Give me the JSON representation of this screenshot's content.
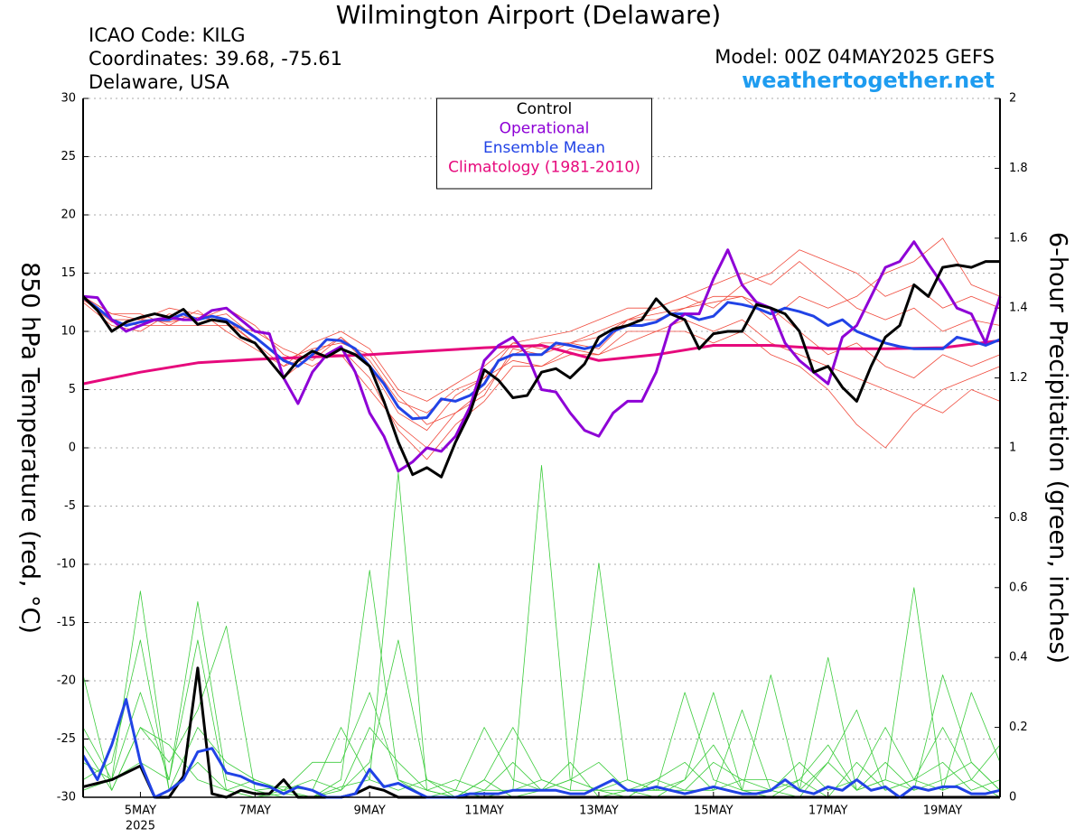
{
  "chart_data": {
    "type": "line",
    "title": "Wilmington Airport (Delaware)",
    "info_lines": [
      "ICAO Code: KILG",
      "Coordinates: 39.68, -75.61",
      "Delaware, USA"
    ],
    "model": "Model: 00Z 04MAY2025 GEFS",
    "source": "weathertogether.net",
    "y_label": "850 hPa Temperature (red, °C)",
    "y2_label": "6-hour Precipitation (green, inches)",
    "xticks": [
      "5MAY",
      "7MAY",
      "9MAY",
      "11MAY",
      "13MAY",
      "15MAY",
      "17MAY",
      "19MAY"
    ],
    "xtick_year": "2025",
    "ylim": [
      -30,
      30
    ],
    "yticks": [
      -30,
      -25,
      -20,
      -15,
      -10,
      -5,
      0,
      5,
      10,
      15,
      20,
      25,
      30
    ],
    "y2lim": [
      0,
      2
    ],
    "y2ticks": [
      0,
      0.2,
      0.4,
      0.6,
      0.8,
      1,
      1.2,
      1.4,
      1.6,
      1.8,
      2
    ],
    "grid": true,
    "legend": "top center",
    "series": [
      {
        "name": "Control",
        "color": "#000000",
        "values": [
          13,
          11.8,
          10,
          10.8,
          11.2,
          11.5,
          11.2,
          11.9,
          10.6,
          11,
          10.8,
          9.5,
          9,
          7.5,
          6,
          7.5,
          8.3,
          7.8,
          8.5,
          8,
          7,
          4,
          0.5,
          -2.3,
          -1.7,
          -2.5,
          0.5,
          3,
          6.7,
          5.8,
          4.3,
          4.5,
          6.5,
          6.8,
          6,
          7.2,
          9.5,
          10.2,
          10.5,
          11,
          12.8,
          11.5,
          11,
          8.5,
          9.8,
          10,
          10,
          12.3,
          12,
          11.5,
          10,
          6.5,
          7,
          5.2,
          4,
          7,
          9.5,
          10.5,
          14,
          13,
          15.5,
          15.7,
          15.5,
          16,
          16
        ]
      },
      {
        "name": "Operational",
        "color": "#8e00d6",
        "values": [
          13,
          12.9,
          11,
          10,
          10.5,
          11,
          11.2,
          11,
          11,
          11.8,
          12,
          11,
          10,
          9.8,
          6,
          3.8,
          6.5,
          8,
          8.7,
          6.5,
          3,
          1,
          -2,
          -1.2,
          0,
          -0.3,
          1,
          3.5,
          7.5,
          8.8,
          9.5,
          8,
          5,
          4.8,
          3,
          1.5,
          1,
          3,
          4,
          4,
          6.5,
          10.5,
          11.5,
          11.5,
          14.5,
          17,
          14,
          12.5,
          12,
          9,
          7.5,
          6.5,
          5.5,
          9.5,
          10.5,
          13,
          15.5,
          16,
          17.7,
          15.8,
          14,
          12,
          11.5,
          9,
          13
        ]
      },
      {
        "name": "Ensemble Mean",
        "color": "#2143e6",
        "values": [
          12.9,
          12,
          11,
          10.5,
          10.8,
          11,
          11,
          11.5,
          11,
          11.3,
          11,
          10.3,
          9.5,
          8.5,
          7.5,
          7,
          8,
          9.3,
          9.2,
          8.5,
          7,
          5.5,
          3.5,
          2.5,
          2.6,
          4.2,
          4,
          4.5,
          5.5,
          7.5,
          8,
          8,
          8,
          9,
          8.8,
          8.5,
          8.8,
          10,
          10.5,
          10.5,
          10.8,
          11.5,
          11.5,
          11,
          11.3,
          12.5,
          12.3,
          12,
          11.5,
          12,
          11.7,
          11.3,
          10.5,
          11,
          10,
          9.5,
          9,
          8.7,
          8.5,
          8.5,
          8.5,
          9.5,
          9.2,
          8.8,
          9.3
        ]
      },
      {
        "name": "Climatology (1981-2010)",
        "color": "#e6097c",
        "values": [
          5.5,
          6.5,
          7.3,
          7.6,
          7.8,
          8,
          8.3,
          8.6,
          8.8,
          7.5,
          8,
          8.8,
          8.8,
          8.5,
          8.5,
          8.6,
          9.2
        ]
      },
      {
        "color": "#2143e6",
        "axis": "y2",
        "values": [
          0.12,
          0.05,
          0.15,
          0.28,
          0.1,
          0,
          0.02,
          0.05,
          0.13,
          0.14,
          0.07,
          0.06,
          0.04,
          0.03,
          0.01,
          0.03,
          0.02,
          0,
          0,
          0.01,
          0.08,
          0.03,
          0.04,
          0.02,
          0,
          0,
          0,
          0.01,
          0.01,
          0.01,
          0.02,
          0.02,
          0.02,
          0.02,
          0.01,
          0.01,
          0.03,
          0.05,
          0.02,
          0.02,
          0.03,
          0.02,
          0.01,
          0.02,
          0.03,
          0.02,
          0.01,
          0.01,
          0.02,
          0.05,
          0.02,
          0.01,
          0.03,
          0.02,
          0.05,
          0.02,
          0.03,
          0,
          0.03,
          0.02,
          0.03,
          0.03,
          0.01,
          0.01,
          0.02
        ]
      },
      {
        "color": "#000000",
        "axis": "y2",
        "values": [
          0.03,
          0.04,
          0.05,
          0.07,
          0.09,
          0,
          0,
          0.06,
          0.37,
          0.01,
          0,
          0.02,
          0.01,
          0.01,
          0.05,
          0,
          0,
          0,
          0,
          0.01,
          0.03,
          0.02,
          0,
          0,
          0,
          0,
          0,
          0,
          0,
          0,
          0,
          0,
          0,
          0,
          0,
          0,
          0,
          0,
          0,
          0,
          0,
          0,
          0,
          0,
          0,
          0,
          0,
          0,
          0,
          0,
          0,
          0,
          0,
          0,
          0,
          0,
          0,
          0,
          0,
          0,
          0,
          0,
          0,
          0,
          0
        ]
      }
    ],
    "members": [
      {
        "color": "#f04a3c",
        "values": [
          13,
          11.5,
          11.5,
          10.5,
          11.8,
          10,
          8.5,
          7,
          9,
          10,
          8.5,
          5,
          4,
          5.5,
          7,
          9,
          9.5,
          10,
          11,
          12,
          12,
          13,
          14,
          15,
          14,
          16,
          14,
          12,
          11,
          12,
          10,
          11,
          10.5
        ]
      },
      {
        "color": "#f04a3c",
        "values": [
          12.5,
          10.5,
          10,
          11.5,
          11,
          12,
          10.5,
          8,
          7,
          8.5,
          6,
          1.5,
          -1,
          2,
          4,
          7,
          7,
          8,
          8,
          10,
          10,
          11,
          10,
          11,
          9,
          8,
          7,
          6,
          5,
          4,
          3,
          5,
          4
        ]
      },
      {
        "color": "#f04a3c",
        "values": [
          13,
          11,
          11,
          12,
          11.5,
          11,
          9,
          6,
          8,
          8,
          5,
          2,
          0,
          3,
          5,
          8,
          9,
          9,
          10,
          11,
          12,
          13,
          12,
          14,
          15,
          17,
          16,
          15,
          13,
          14,
          12,
          13,
          12
        ]
      },
      {
        "color": "#f04a3c",
        "values": [
          12.8,
          10.8,
          10.5,
          10.5,
          10.5,
          10.5,
          10,
          8.5,
          7.5,
          9.5,
          7.5,
          4,
          3,
          5,
          6,
          7.5,
          7,
          8.5,
          8,
          9,
          10,
          10,
          9,
          10,
          8,
          7,
          5,
          2,
          0,
          3,
          5,
          6,
          7
        ]
      },
      {
        "color": "#f04a3c",
        "values": [
          13,
          11.5,
          11,
          11,
          11,
          11.5,
          9.5,
          7.5,
          8.5,
          9,
          8,
          4.5,
          2,
          3,
          4.5,
          8.5,
          8,
          9,
          8.5,
          11,
          11,
          12,
          13,
          13,
          11,
          13,
          12,
          13,
          15,
          16,
          18,
          14,
          13
        ]
      },
      {
        "color": "#f04a3c",
        "values": [
          12.7,
          11,
          11,
          10.8,
          11.2,
          10.8,
          9,
          7,
          8,
          9.5,
          7,
          3,
          1.5,
          4.5,
          6,
          9,
          8.5,
          9,
          9.5,
          11,
          11.5,
          12,
          12.5,
          13,
          12,
          10,
          8,
          9,
          7,
          6,
          8,
          7,
          8
        ]
      },
      {
        "color": "#3ccc3c",
        "axis": "y2",
        "values": [
          0.2,
          0.05,
          0.59,
          0.02,
          0.1,
          0.02,
          0,
          0.01,
          0,
          0.03,
          0.05,
          0.93,
          0.02,
          0,
          0.05,
          0,
          0.02,
          0.1,
          0,
          0.02,
          0,
          0.05,
          0.3,
          0.02,
          0,
          0.05,
          0,
          0.1,
          0.02,
          0.05,
          0.02,
          0.3,
          0.1
        ]
      },
      {
        "color": "#3ccc3c",
        "axis": "y2",
        "values": [
          0.35,
          0.02,
          0.2,
          0.1,
          0.25,
          0.49,
          0.02,
          0,
          0,
          0.05,
          0.65,
          0.05,
          0,
          0.02,
          0,
          0.02,
          0.95,
          0.05,
          0.02,
          0,
          0.05,
          0.02,
          0.02,
          0.25,
          0.02,
          0,
          0.1,
          0.02,
          0.05,
          0.6,
          0.02,
          0.05,
          0
        ]
      },
      {
        "color": "#3ccc3c",
        "axis": "y2",
        "values": [
          0.1,
          0.05,
          0.3,
          0.05,
          0.56,
          0.05,
          0.02,
          0.03,
          0.02,
          0.2,
          0.05,
          0.02,
          0.05,
          0,
          0.02,
          0.02,
          0.05,
          0.02,
          0.67,
          0.05,
          0.02,
          0.3,
          0.05,
          0.02,
          0.35,
          0.02,
          0.4,
          0.02,
          0.05,
          0.02,
          0.35,
          0.1,
          0.02
        ]
      },
      {
        "color": "#3ccc3c",
        "axis": "y2",
        "values": [
          0.05,
          0.1,
          0.45,
          0.02,
          0.2,
          0.1,
          0.05,
          0.02,
          0.1,
          0.1,
          0.3,
          0.05,
          0.02,
          0,
          0.05,
          0.2,
          0.05,
          0.02,
          0.02,
          0.02,
          0.05,
          0.1,
          0.02,
          0.05,
          0.05,
          0.02,
          0.1,
          0.25,
          0.02,
          0.05,
          0.2,
          0.05,
          0.15
        ]
      },
      {
        "color": "#3ccc3c",
        "axis": "y2",
        "values": [
          0.15,
          0.02,
          0.2,
          0.15,
          0.05,
          0.02,
          0,
          0.02,
          0,
          0.02,
          0.1,
          0.45,
          0.05,
          0.02,
          0.2,
          0.05,
          0.02,
          0.05,
          0.1,
          0.02,
          0.02,
          0.05,
          0.15,
          0.02,
          0.02,
          0.1,
          0.02,
          0.05,
          0.2,
          0.05,
          0.1,
          0.02,
          0.05
        ]
      },
      {
        "color": "#3ccc3c",
        "axis": "y2",
        "values": [
          0.02,
          0.05,
          0.1,
          0.05,
          0.45,
          0.02,
          0.05,
          0.02,
          0.05,
          0.02,
          0.2,
          0.1,
          0.02,
          0.05,
          0.02,
          0.1,
          0.02,
          0.05,
          0.02,
          0.05,
          0.02,
          0.02,
          0.1,
          0.05,
          0.02,
          0.05,
          0.15,
          0.02,
          0.1,
          0.02,
          0.05,
          0.1,
          0.02
        ]
      }
    ]
  }
}
